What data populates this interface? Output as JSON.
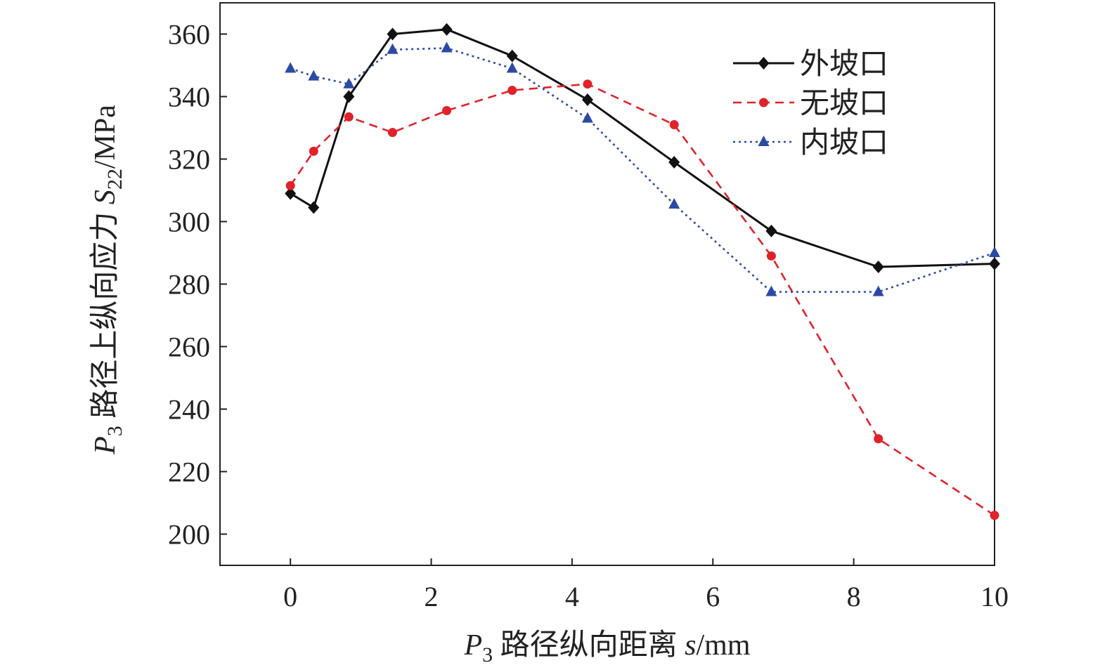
{
  "chart_data": {
    "type": "line",
    "title": "",
    "xlabel": {
      "var": "P",
      "sub": "3",
      "text": " 路径纵向距离 ",
      "sym": "s",
      "unit": "/mm"
    },
    "ylabel": {
      "var": "P",
      "sub": "3",
      "text": " 路径上纵向应力 ",
      "sym": "S",
      "sym_sub": "22",
      "unit": "/MPa"
    },
    "xlim": [
      -1,
      10
    ],
    "ylim": [
      190,
      370
    ],
    "xticks": [
      0,
      2,
      4,
      6,
      8,
      10
    ],
    "yticks": [
      200,
      220,
      240,
      260,
      280,
      300,
      320,
      340,
      360
    ],
    "grid": false,
    "legend_position": "top-right",
    "series": [
      {
        "name": "外坡口",
        "color": "#111111",
        "dash": "",
        "marker": "diamond",
        "x": [
          0,
          0.33,
          0.83,
          1.45,
          2.22,
          3.15,
          4.22,
          5.45,
          6.83,
          8.35,
          10
        ],
        "y": [
          309,
          304.5,
          340,
          360,
          361.5,
          353,
          339,
          319,
          297,
          285.5,
          286.5
        ]
      },
      {
        "name": "无坡口",
        "color": "#e0222a",
        "dash": "12,8",
        "marker": "circle",
        "x": [
          0,
          0.33,
          0.83,
          1.45,
          2.22,
          3.15,
          4.22,
          5.45,
          6.83,
          8.35,
          10
        ],
        "y": [
          311.5,
          322.5,
          333.5,
          328.5,
          335.5,
          342,
          344,
          331,
          289,
          230.5,
          206
        ]
      },
      {
        "name": "内坡口",
        "color": "#2b4aa3",
        "dash": "3,5",
        "marker": "triangle",
        "x": [
          0,
          0.33,
          0.83,
          1.45,
          2.22,
          3.15,
          4.22,
          5.45,
          6.83,
          8.35,
          10
        ],
        "y": [
          349,
          346.5,
          344,
          355,
          355.5,
          349,
          333,
          305.5,
          277.5,
          277.5,
          290
        ]
      }
    ]
  }
}
